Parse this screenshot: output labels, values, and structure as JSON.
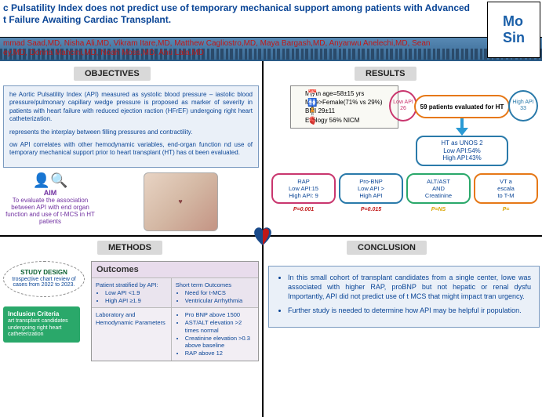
{
  "header": {
    "title": "c Pulsatility Index does not predict use of temporary mechanical support among patients with Advanced\nt Failure Awaiting Cardiac Transplant.",
    "authors": "mmad Saad,MD, Nisha Ali,MD, Vikram Itare,MD, Matthew Cagliostro,MD, Maya Bargash,MD, Anyanwu Anelechi,MD, Sean\ney,MD, Donna Mancini,MD, Noah Moss,MD, Anu Lala,MD",
    "logo": "Mo\nSin"
  },
  "objectives": {
    "tag": "OBJECTIVES",
    "p1": "he Aortic Pulsatility Index (API) measured as systolic blood pressure – iastolic blood pressure/pulmonary capillary wedge pressure is proposed as marker of severity in patients with heart failure with reduced ejection raction (HFrEF) undergoing right heart catheterization.",
    "p2": "represents the interplay between filling pressures and contractility.",
    "p3": "ow API correlates with other hemodynamic variables, end-organ function nd use of temporary mechanical support prior to heart transplant (HT) has ot been evaluated.",
    "aim_label": "AIM",
    "aim_text": "To evaluate the association between API with end organ function and use of t-MCS in HT patients"
  },
  "methods": {
    "tag": "METHODS",
    "study_design_label": "STUDY DESIGN",
    "study_design_text": "trospective chart review of cases from 2022 to 2023.",
    "inclusion_label": "Inclusion Criteria",
    "inclusion_text": "art transplant candidates undergoing right heart catheterization",
    "outcomes_label": "Outcomes",
    "row1c1_head": "Patient stratified by API:",
    "row1c1_b1": "Low API <1.9",
    "row1c1_b2": "High API ≥1.9",
    "row1c2_head": "Short term Outcomes",
    "row1c2_b1": "Need for t-MCS",
    "row1c2_b2": "Ventricular Arrhythmia",
    "row2c1": "Laboratory and Hemodynamic Parameters",
    "row2c2_b1": "Pro BNP above 1500",
    "row2c2_b2": "AST/ALT elevation >2 times normal",
    "row2c2_b3": "Creatinine elevation >0.3 above baseline",
    "row2c2_b4": "RAP above 12"
  },
  "results": {
    "tag": "RESULTS",
    "stats": {
      "age": "Mean age=58±15 yrs",
      "sex": "Male>Female(71% vs 29%)",
      "bmi": "BMI 29±11",
      "etio": "Etiology 56% NICM"
    },
    "low_oval": "Low API\n26",
    "high_oval": "High API\n33",
    "main_flow": "59 patients evaluated for HT",
    "ht_box": "HT as UNOS 2\nLow API:54%\nHigh API:43%",
    "metrics": [
      {
        "lines": "RAP\nLow API:15\nHigh API: 9",
        "p": "P=0.001",
        "pc": "pv-r"
      },
      {
        "lines": "Pro-BNP\nLow API >\nHigh API",
        "p": "P=0.015",
        "pc": "pv-r"
      },
      {
        "lines": "ALT/AST\nAND\nCreatinine",
        "p": "P=NS",
        "pc": "pv-y"
      },
      {
        "lines": "VT a\nescala\nto T-M",
        "p": "P=",
        "pc": "pv-y"
      }
    ]
  },
  "conclusion": {
    "tag": "CONCLUSION",
    "b1": "In this small cohort of transplant candidates from a single center, lowe was associated with higher RAP, proBNP but not hepatic or renal dysfu Importantly, API did not predict use of t MCS that might impact tran urgency.",
    "b2": "Further study is needed to determine how API may be helpful ir population."
  }
}
